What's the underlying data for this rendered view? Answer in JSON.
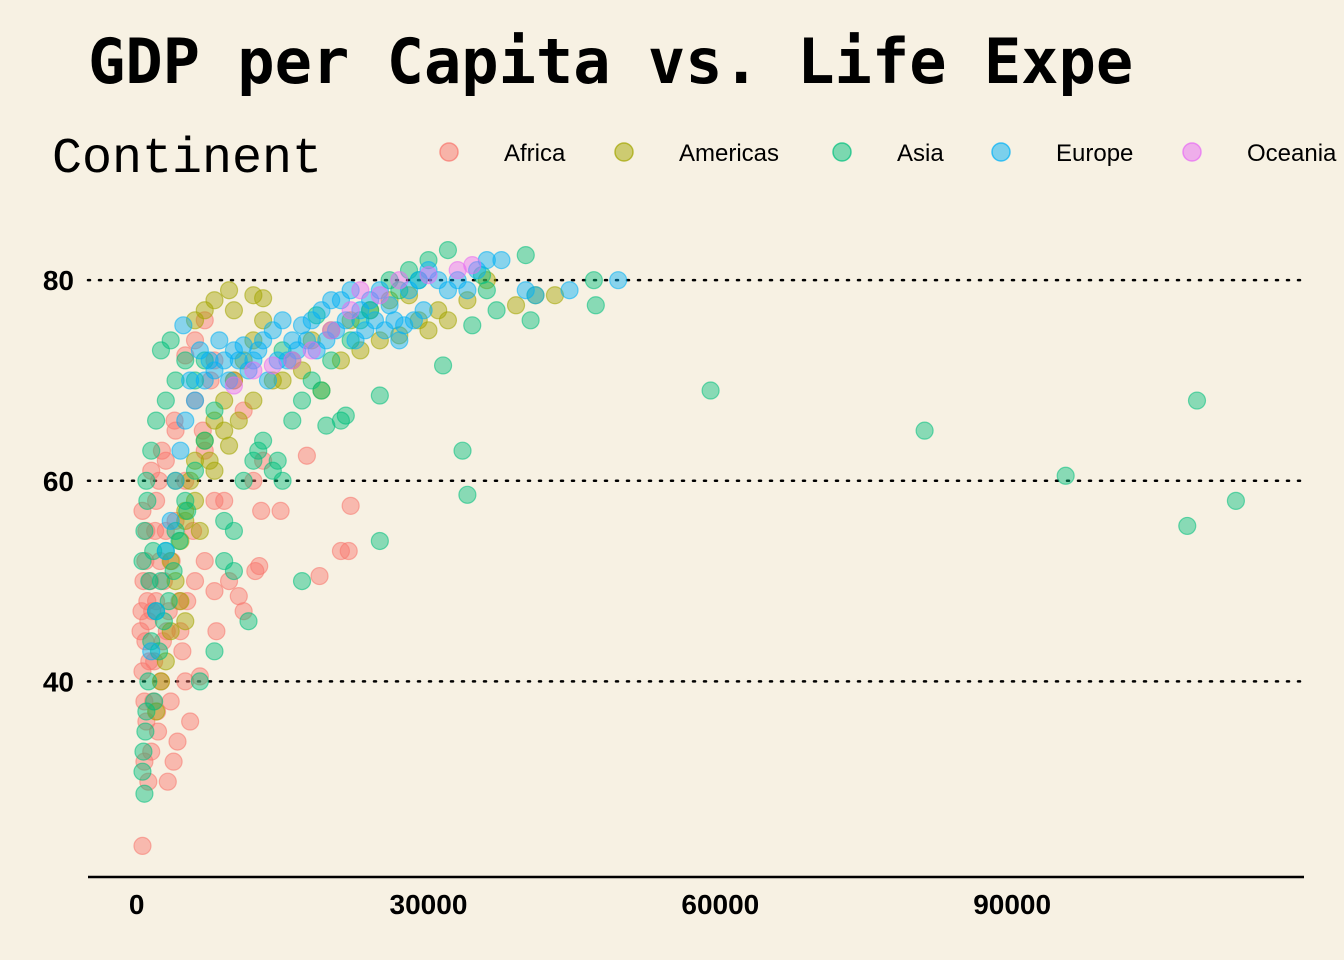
{
  "chart_data": {
    "type": "scatter",
    "title": "GDP per Capita vs. Life Expe",
    "legend": {
      "title": "Continent",
      "placement": "top"
    },
    "xlabel": "",
    "ylabel": "",
    "xlim": [
      -5000,
      120000
    ],
    "ylim": [
      20.5,
      86
    ],
    "xticks": [
      0,
      30000,
      60000,
      90000
    ],
    "yticks": [
      40,
      60,
      80
    ],
    "grid": "y-dotted",
    "colors": {
      "Africa": "#F8766D",
      "Americas": "#A3A500",
      "Asia": "#00BF7D",
      "Europe": "#00B0F6",
      "Oceania": "#E76BF3"
    },
    "series": [
      {
        "name": "Africa",
        "points": [
          [
            600,
            23.6
          ],
          [
            1200,
            30
          ],
          [
            800,
            32
          ],
          [
            1500,
            33
          ],
          [
            2200,
            35
          ],
          [
            3200,
            30
          ],
          [
            3800,
            32
          ],
          [
            4200,
            34
          ],
          [
            5500,
            36
          ],
          [
            5000,
            40
          ],
          [
            6500,
            40.5
          ],
          [
            3500,
            38
          ],
          [
            2500,
            40
          ],
          [
            1800,
            42
          ],
          [
            900,
            44
          ],
          [
            1200,
            46
          ],
          [
            2000,
            48
          ],
          [
            2800,
            50
          ],
          [
            3600,
            52
          ],
          [
            4500,
            45
          ],
          [
            5200,
            48
          ],
          [
            6000,
            50
          ],
          [
            7000,
            52
          ],
          [
            8000,
            49
          ],
          [
            9500,
            50
          ],
          [
            11000,
            47
          ],
          [
            10500,
            48.5
          ],
          [
            12200,
            51
          ],
          [
            12600,
            51.5
          ],
          [
            8200,
            45
          ],
          [
            3000,
            55
          ],
          [
            4000,
            56
          ],
          [
            5000,
            60
          ],
          [
            7000,
            63
          ],
          [
            8000,
            58
          ],
          [
            9000,
            58
          ],
          [
            12000,
            60
          ],
          [
            12800,
            57
          ],
          [
            14800,
            57
          ],
          [
            17500,
            62.5
          ],
          [
            18800,
            50.5
          ],
          [
            21000,
            53
          ],
          [
            21800,
            53
          ],
          [
            22000,
            57.5
          ],
          [
            13000,
            62
          ],
          [
            11000,
            67
          ],
          [
            10000,
            70
          ],
          [
            8000,
            72
          ],
          [
            6000,
            74
          ],
          [
            5000,
            72.5
          ],
          [
            7000,
            76
          ],
          [
            6000,
            68
          ],
          [
            4000,
            65
          ],
          [
            3000,
            62
          ],
          [
            2000,
            58
          ],
          [
            1000,
            55
          ],
          [
            700,
            50
          ],
          [
            500,
            47
          ],
          [
            400,
            45
          ],
          [
            600,
            41
          ],
          [
            800,
            38
          ],
          [
            1000,
            36
          ],
          [
            1300,
            42
          ],
          [
            1600,
            47
          ],
          [
            2400,
            52
          ],
          [
            3100,
            45
          ],
          [
            4400,
            48
          ],
          [
            5800,
            55
          ],
          [
            6800,
            65
          ],
          [
            7600,
            70
          ],
          [
            2300,
            60
          ],
          [
            1900,
            55
          ],
          [
            1400,
            50
          ],
          [
            1100,
            48
          ],
          [
            900,
            52
          ],
          [
            2700,
            44
          ],
          [
            3300,
            47
          ],
          [
            4700,
            43
          ],
          [
            1700,
            38
          ],
          [
            2100,
            37
          ],
          [
            600,
            57
          ],
          [
            1500,
            61
          ],
          [
            2600,
            63
          ],
          [
            3900,
            66
          ]
        ]
      },
      {
        "name": "Americas",
        "points": [
          [
            2000,
            37
          ],
          [
            2500,
            40
          ],
          [
            3000,
            42
          ],
          [
            3500,
            45
          ],
          [
            4000,
            50
          ],
          [
            4500,
            54
          ],
          [
            5000,
            57
          ],
          [
            5500,
            60
          ],
          [
            6000,
            62
          ],
          [
            7000,
            64
          ],
          [
            8000,
            66
          ],
          [
            9000,
            68
          ],
          [
            10000,
            70
          ],
          [
            11000,
            72
          ],
          [
            12000,
            74
          ],
          [
            13000,
            76
          ],
          [
            6000,
            76
          ],
          [
            7000,
            77
          ],
          [
            8000,
            78
          ],
          [
            9500,
            79
          ],
          [
            10000,
            77
          ],
          [
            12000,
            78.5
          ],
          [
            13000,
            78.2
          ],
          [
            14000,
            70
          ],
          [
            16000,
            72
          ],
          [
            18000,
            74
          ],
          [
            20000,
            75
          ],
          [
            22000,
            76
          ],
          [
            24000,
            77
          ],
          [
            26000,
            78
          ],
          [
            28000,
            78.5
          ],
          [
            30000,
            75
          ],
          [
            32000,
            76
          ],
          [
            34000,
            78
          ],
          [
            36000,
            80
          ],
          [
            39000,
            77.5
          ],
          [
            41000,
            78.5
          ],
          [
            43000,
            78.5
          ],
          [
            4000,
            60
          ],
          [
            5000,
            56
          ],
          [
            3500,
            52
          ],
          [
            4500,
            48
          ],
          [
            6000,
            58
          ],
          [
            7500,
            62
          ],
          [
            9000,
            65
          ],
          [
            10500,
            66
          ],
          [
            12000,
            68
          ],
          [
            15000,
            70
          ],
          [
            17000,
            71
          ],
          [
            19000,
            69
          ],
          [
            21000,
            72
          ],
          [
            23000,
            73
          ],
          [
            25000,
            74
          ],
          [
            27000,
            74.5
          ],
          [
            29000,
            76
          ],
          [
            31000,
            77
          ],
          [
            9500,
            63.5
          ],
          [
            8000,
            61
          ],
          [
            6500,
            55
          ],
          [
            5000,
            46
          ]
        ]
      },
      {
        "name": "Asia",
        "points": [
          [
            800,
            28.8
          ],
          [
            600,
            31
          ],
          [
            700,
            33
          ],
          [
            900,
            35
          ],
          [
            1000,
            37
          ],
          [
            1200,
            40
          ],
          [
            1500,
            44
          ],
          [
            2000,
            47
          ],
          [
            2500,
            50
          ],
          [
            3000,
            53
          ],
          [
            4000,
            55
          ],
          [
            5000,
            58
          ],
          [
            6000,
            61
          ],
          [
            7000,
            64
          ],
          [
            8000,
            67
          ],
          [
            9000,
            52
          ],
          [
            10000,
            55
          ],
          [
            11000,
            60
          ],
          [
            12000,
            62
          ],
          [
            13000,
            64
          ],
          [
            14000,
            61
          ],
          [
            15000,
            60
          ],
          [
            16000,
            66
          ],
          [
            17000,
            68
          ],
          [
            18000,
            70
          ],
          [
            19000,
            69
          ],
          [
            20000,
            72
          ],
          [
            21000,
            66
          ],
          [
            22000,
            74
          ],
          [
            23000,
            76
          ],
          [
            24000,
            77
          ],
          [
            25000,
            68.5
          ],
          [
            26000,
            80
          ],
          [
            28000,
            81
          ],
          [
            30000,
            82
          ],
          [
            32000,
            83
          ],
          [
            33500,
            63
          ],
          [
            34000,
            58.6
          ],
          [
            34500,
            75.5
          ],
          [
            36000,
            79
          ],
          [
            40000,
            82.5
          ],
          [
            40500,
            76
          ],
          [
            47000,
            80
          ],
          [
            47200,
            77.5
          ],
          [
            59000,
            69
          ],
          [
            81000,
            65
          ],
          [
            95500,
            60.5
          ],
          [
            108000,
            55.5
          ],
          [
            109000,
            68
          ],
          [
            113000,
            58
          ],
          [
            25000,
            54
          ],
          [
            17000,
            50
          ],
          [
            11500,
            46
          ],
          [
            8000,
            43
          ],
          [
            6500,
            40
          ],
          [
            5000,
            72
          ],
          [
            4000,
            70
          ],
          [
            3000,
            68
          ],
          [
            2000,
            66
          ],
          [
            1500,
            63
          ],
          [
            1000,
            60
          ],
          [
            2500,
            73
          ],
          [
            3500,
            74
          ],
          [
            6000,
            70
          ],
          [
            7000,
            72
          ],
          [
            12500,
            63
          ],
          [
            14500,
            62
          ],
          [
            19500,
            65.5
          ],
          [
            21500,
            66.5
          ],
          [
            31500,
            71.5
          ],
          [
            10000,
            51
          ],
          [
            9000,
            56
          ],
          [
            15000,
            73
          ],
          [
            18500,
            76.5
          ],
          [
            27000,
            79
          ],
          [
            29000,
            80
          ],
          [
            35500,
            80.5
          ],
          [
            37000,
            77
          ],
          [
            1800,
            38
          ],
          [
            2300,
            43
          ],
          [
            2800,
            46
          ],
          [
            3300,
            48
          ],
          [
            3800,
            51
          ],
          [
            4400,
            54
          ],
          [
            5200,
            57
          ],
          [
            600,
            52
          ],
          [
            800,
            55
          ],
          [
            1100,
            58
          ],
          [
            1300,
            50
          ],
          [
            1700,
            53
          ]
        ]
      },
      {
        "name": "Europe",
        "points": [
          [
            1500,
            43
          ],
          [
            2000,
            47
          ],
          [
            3000,
            53
          ],
          [
            3500,
            56
          ],
          [
            4000,
            60
          ],
          [
            4500,
            63
          ],
          [
            5000,
            66
          ],
          [
            6000,
            68
          ],
          [
            7000,
            70
          ],
          [
            8000,
            71
          ],
          [
            9000,
            72
          ],
          [
            10000,
            73
          ],
          [
            11000,
            73.5
          ],
          [
            12000,
            72
          ],
          [
            13000,
            74
          ],
          [
            14000,
            75
          ],
          [
            15000,
            76
          ],
          [
            16000,
            74
          ],
          [
            17000,
            75.5
          ],
          [
            18000,
            76
          ],
          [
            19000,
            77
          ],
          [
            20000,
            78
          ],
          [
            21000,
            78
          ],
          [
            22000,
            79
          ],
          [
            23000,
            77
          ],
          [
            24000,
            78
          ],
          [
            25000,
            79
          ],
          [
            26000,
            77.5
          ],
          [
            27000,
            74
          ],
          [
            28000,
            79
          ],
          [
            29000,
            80
          ],
          [
            30000,
            81
          ],
          [
            31000,
            80
          ],
          [
            32000,
            79
          ],
          [
            33000,
            80
          ],
          [
            34000,
            79
          ],
          [
            35000,
            81
          ],
          [
            36000,
            82
          ],
          [
            37500,
            82
          ],
          [
            40000,
            79
          ],
          [
            41000,
            78.5
          ],
          [
            44500,
            79
          ],
          [
            49500,
            80
          ],
          [
            4800,
            75.5
          ],
          [
            5500,
            70
          ],
          [
            6500,
            73
          ],
          [
            7500,
            72
          ],
          [
            8500,
            74
          ],
          [
            9500,
            70
          ],
          [
            10500,
            72
          ],
          [
            11500,
            71
          ],
          [
            12500,
            73
          ],
          [
            13500,
            70
          ],
          [
            14500,
            72
          ],
          [
            15500,
            72
          ],
          [
            16500,
            73
          ],
          [
            17500,
            74
          ],
          [
            18500,
            73
          ],
          [
            19500,
            74
          ],
          [
            20500,
            75
          ],
          [
            21500,
            76
          ],
          [
            22500,
            74
          ],
          [
            23500,
            75
          ],
          [
            24500,
            76
          ],
          [
            25500,
            75
          ],
          [
            26500,
            76
          ],
          [
            27500,
            75.5
          ],
          [
            28500,
            76
          ],
          [
            29500,
            77
          ]
        ]
      },
      {
        "name": "Oceania",
        "points": [
          [
            10000,
            69.5
          ],
          [
            12000,
            71
          ],
          [
            14000,
            71.5
          ],
          [
            16000,
            72
          ],
          [
            18000,
            73
          ],
          [
            20000,
            75
          ],
          [
            22000,
            77
          ],
          [
            23000,
            79
          ],
          [
            25000,
            78.5
          ],
          [
            27000,
            80
          ],
          [
            30000,
            80.5
          ],
          [
            33000,
            81
          ],
          [
            34500,
            81.5
          ]
        ]
      }
    ]
  }
}
